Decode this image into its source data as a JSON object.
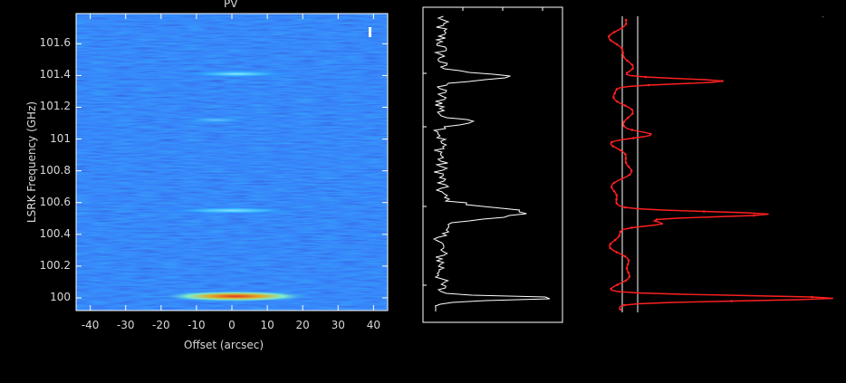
{
  "window": {
    "title": "PV"
  },
  "pv_plot": {
    "ylabel": "LSRK Frequency (GHz)",
    "xlabel": "Offset (arcsec)",
    "y_ticks": [
      "101.6",
      "101.4",
      "101.2",
      "101",
      "100.8",
      "100.6",
      "100.4",
      "100.2",
      "100"
    ],
    "x_ticks": [
      "-40",
      "-30",
      "-20",
      "-10",
      "0",
      "10",
      "20",
      "30",
      "40"
    ],
    "marker": "I",
    "colors": {
      "background": "#0a3ad8",
      "emission_cyan": "#3fd6ff",
      "emission_hot": "#ff3a00",
      "frame": "#ffffff"
    }
  },
  "chart_data": [
    {
      "type": "heatmap",
      "title": "PV",
      "xlabel": "Offset (arcsec)",
      "ylabel": "LSRK Frequency (GHz)",
      "xlim": [
        -44,
        44
      ],
      "ylim": [
        99.92,
        101.79
      ],
      "features": [
        {
          "freq": 101.41,
          "x_from": -15,
          "x_to": 18,
          "strength": "moderate"
        },
        {
          "freq": 101.12,
          "x_from": -15,
          "x_to": 6,
          "strength": "weak"
        },
        {
          "freq": 100.55,
          "x_from": -20,
          "x_to": 20,
          "strength": "moderate"
        },
        {
          "freq": 100.01,
          "x_from": -20,
          "x_to": 22,
          "strength": "strong",
          "peak_offset": -7
        }
      ]
    },
    {
      "type": "line",
      "title": "",
      "series": [
        {
          "name": "",
          "color": "#ffffff"
        }
      ],
      "ylim": [
        99.92,
        101.79
      ],
      "peaks_freq": [
        101.41,
        101.12,
        100.55,
        100.01
      ]
    },
    {
      "type": "line",
      "title": "",
      "series": [
        {
          "name": "",
          "color": "#ff2020"
        }
      ],
      "ylim": [
        99.92,
        101.79
      ],
      "peaks_freq": [
        101.38,
        101.04,
        100.54,
        100.48,
        100.01
      ],
      "reference_lines": 2
    }
  ]
}
